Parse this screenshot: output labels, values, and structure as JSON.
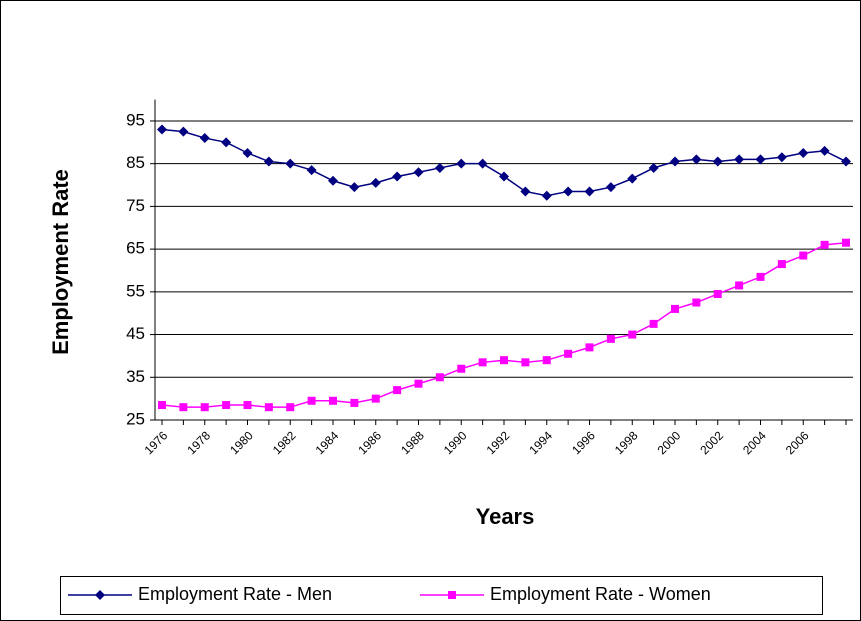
{
  "chart_data": {
    "type": "line",
    "x_label": "Years",
    "y_label": "Employment Rate",
    "categories": [
      "1976",
      null,
      "1978",
      null,
      "1980",
      null,
      "1982",
      null,
      "1984",
      null,
      "1986",
      null,
      "1988",
      null,
      "1990",
      null,
      "1992",
      null,
      "1994",
      null,
      "1996",
      null,
      "1998",
      null,
      "2000",
      null,
      "2002",
      null,
      "2004",
      null,
      "2006",
      null,
      null
    ],
    "series": [
      {
        "name": "Employment Rate - Men",
        "color": "#000080",
        "marker": "diamond",
        "values": [
          93,
          92.5,
          91,
          90,
          87.5,
          85.5,
          85,
          83.5,
          81,
          79.5,
          80.5,
          82,
          83,
          84,
          85,
          85,
          82,
          78.5,
          77.5,
          78.5,
          78.5,
          79.5,
          81.5,
          84,
          85.5,
          86,
          85.5,
          86,
          86,
          86.5,
          87.5,
          88,
          85.5
        ]
      },
      {
        "name": "Employment Rate - Women",
        "color": "#ff00ff",
        "marker": "square",
        "values": [
          28.5,
          28,
          28,
          28.5,
          28.5,
          28,
          28,
          29.5,
          29.5,
          29,
          30,
          32,
          33.5,
          35,
          37,
          38.5,
          39,
          38.5,
          39,
          40.5,
          42,
          44,
          45,
          47.5,
          51,
          52.5,
          54.5,
          56.5,
          58.5,
          61.5,
          63.5,
          66,
          66.5
        ]
      }
    ],
    "ylim": [
      25,
      100
    ],
    "yticks": [
      25,
      35,
      45,
      55,
      65,
      75,
      85,
      95
    ],
    "grid": true,
    "legend": "bottom"
  }
}
